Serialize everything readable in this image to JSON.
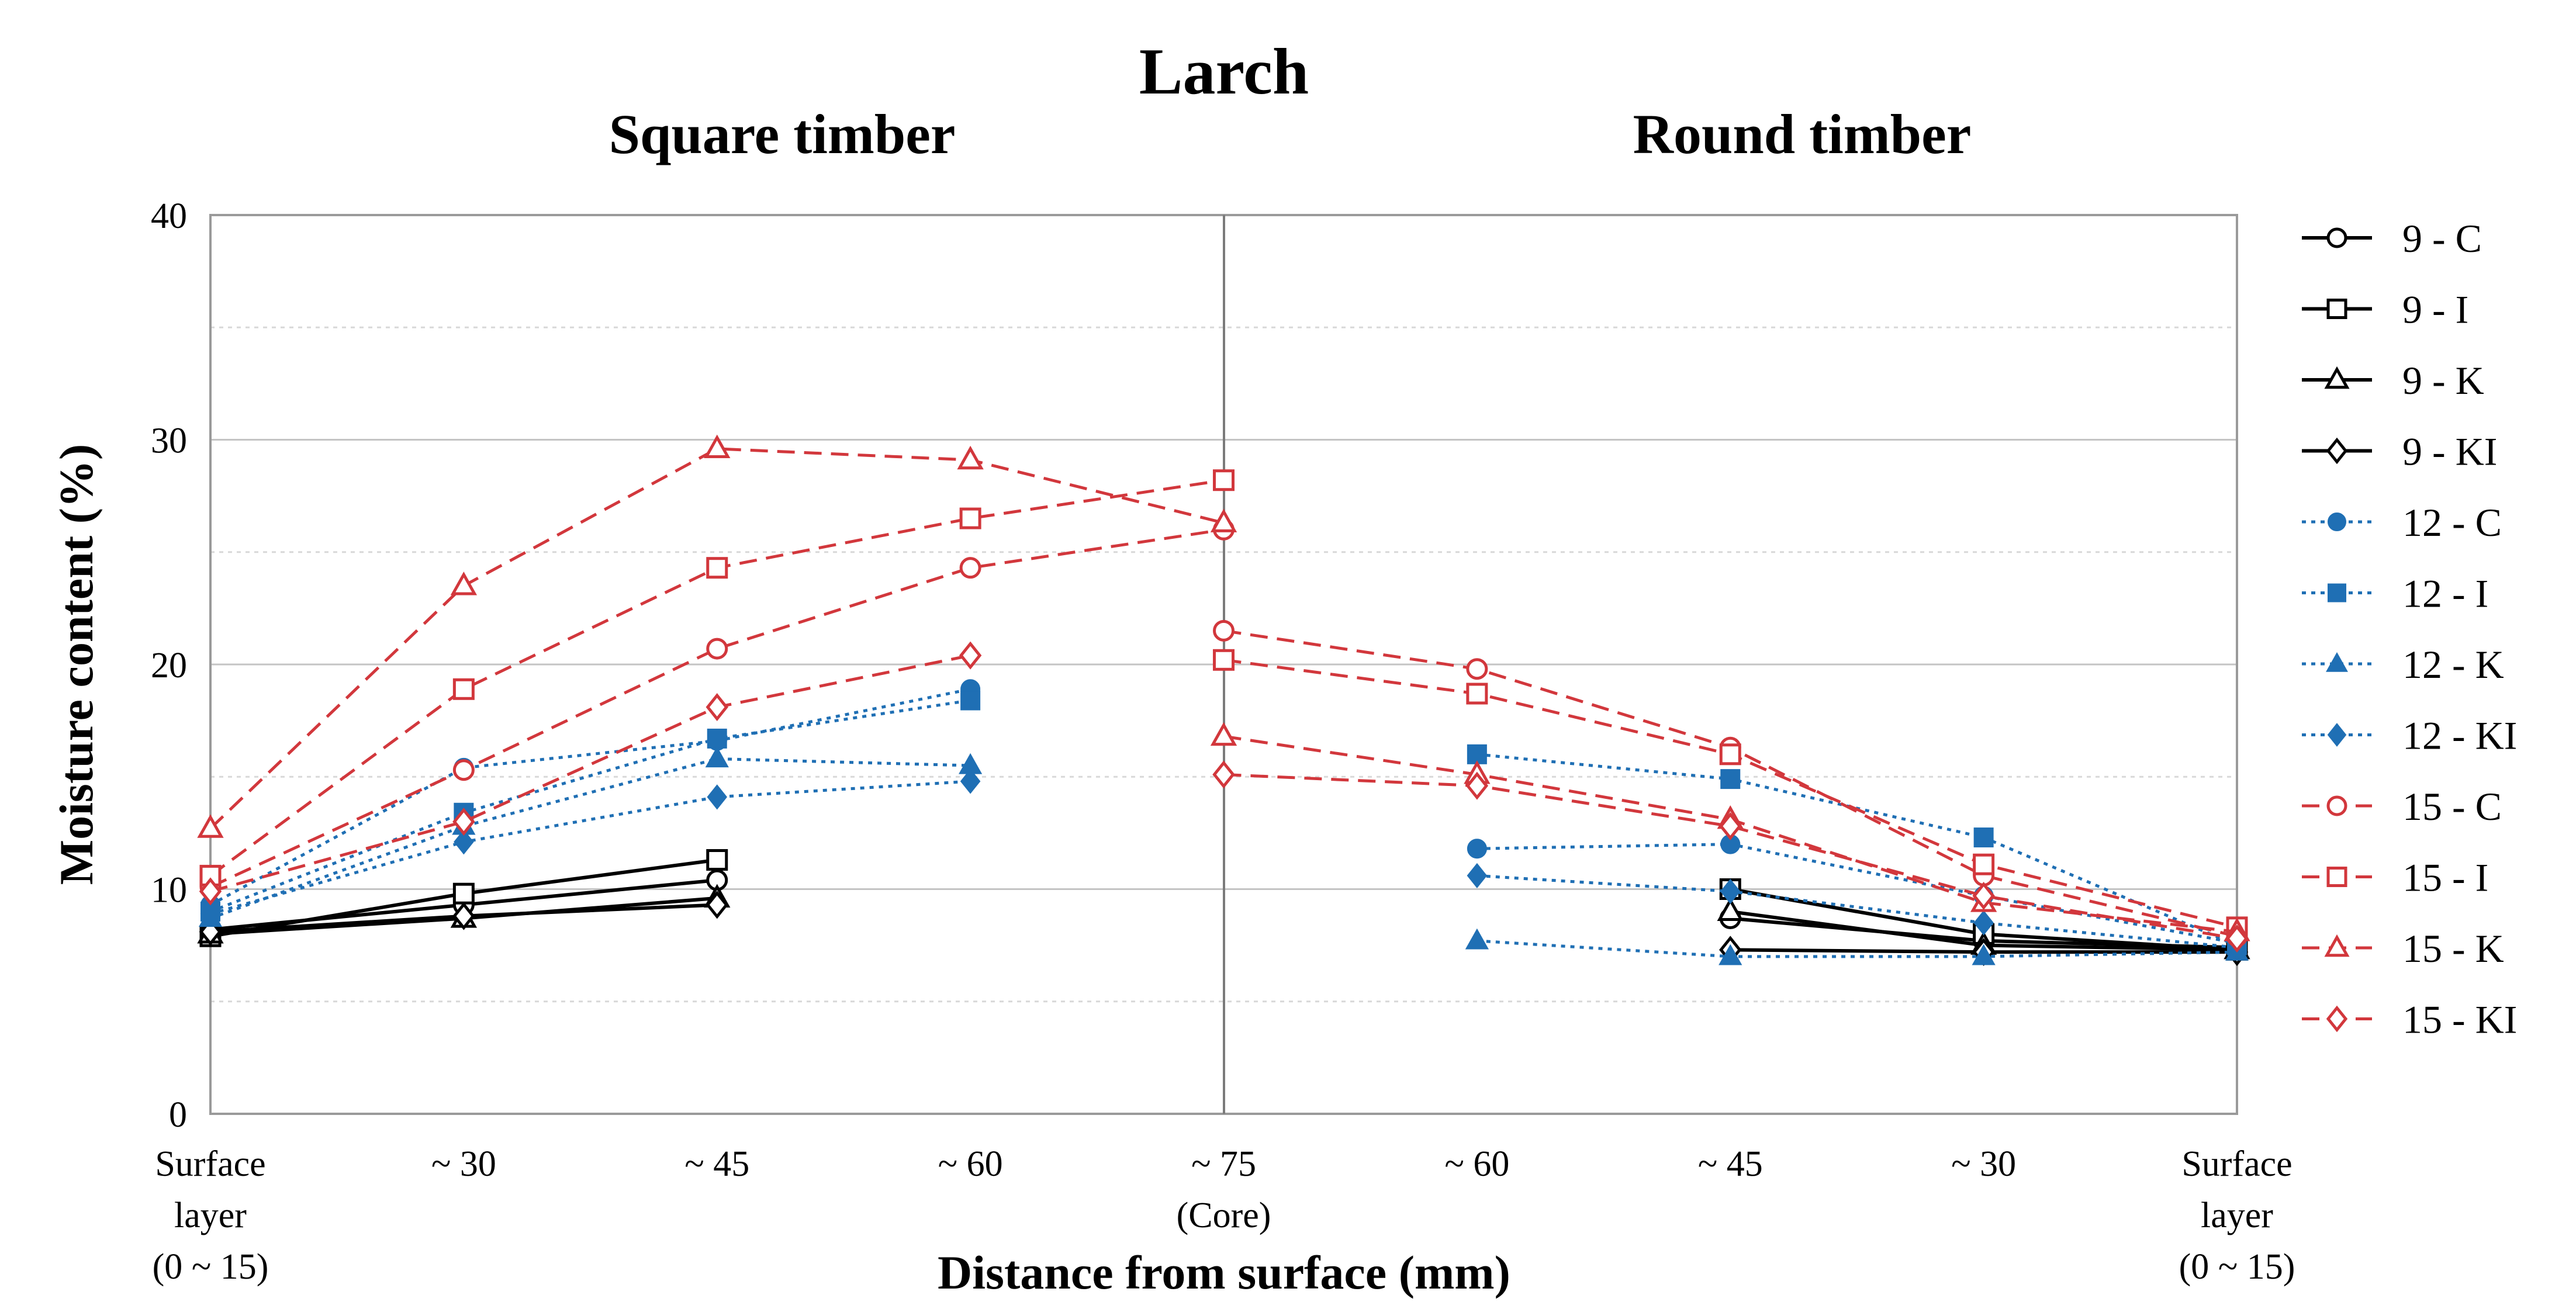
{
  "chart_data": {
    "type": "line",
    "title": "Larch",
    "subtitles": [
      "Square timber",
      "Round timber"
    ],
    "xlabel": "Distance from surface (mm)",
    "ylabel": "Moisture content (%)",
    "ylim": [
      0,
      40
    ],
    "yticks": [
      "0",
      "10",
      "20",
      "30",
      "40"
    ],
    "grid": "horizontal",
    "legend_position": "right",
    "categories": [
      [
        "Surface",
        "layer",
        "(0 ~ 15)"
      ],
      [
        "~ 30"
      ],
      [
        "~ 45"
      ],
      [
        "~ 60"
      ],
      [
        "~ 75",
        "(Core)"
      ],
      [
        "~ 60"
      ],
      [
        "~ 45"
      ],
      [
        "~ 30"
      ],
      [
        "Surface",
        "layer",
        "(0 ~ 15)"
      ]
    ],
    "series": [
      {
        "name": "9 - C",
        "color": "#000000",
        "style": "solid",
        "marker": "circle",
        "filled": false,
        "left": [
          8.2,
          9.3,
          10.4
        ],
        "right": [
          null,
          null,
          8.7,
          7.7,
          7.4
        ]
      },
      {
        "name": "9 - I",
        "color": "#000000",
        "style": "solid",
        "marker": "square",
        "filled": false,
        "left": [
          7.9,
          9.8,
          11.3
        ],
        "right": [
          null,
          null,
          10.0,
          8.0,
          7.3
        ]
      },
      {
        "name": "9 - K",
        "color": "#000000",
        "style": "solid",
        "marker": "triangle",
        "filled": false,
        "left": [
          8.0,
          8.7,
          9.6
        ],
        "right": [
          null,
          null,
          9.0,
          7.5,
          7.3
        ]
      },
      {
        "name": "9 - KI",
        "color": "#000000",
        "style": "solid",
        "marker": "diamond",
        "filled": false,
        "left": [
          8.1,
          8.8,
          9.3
        ],
        "right": [
          null,
          null,
          7.3,
          7.2,
          7.2
        ]
      },
      {
        "name": "12 - C",
        "color": "#1f6fb4",
        "style": "dotted",
        "marker": "circle",
        "filled": true,
        "left": [
          9.3,
          15.4,
          16.6,
          18.9
        ],
        "right": [
          null,
          11.8,
          12.0,
          9.7,
          7.6
        ]
      },
      {
        "name": "12 - I",
        "color": "#1f6fb4",
        "style": "dotted",
        "marker": "square",
        "filled": true,
        "left": [
          9.0,
          13.4,
          16.7,
          18.4
        ],
        "right": [
          null,
          16.0,
          14.9,
          12.3,
          7.5
        ]
      },
      {
        "name": "12 - K",
        "color": "#1f6fb4",
        "style": "dotted",
        "marker": "triangle",
        "filled": true,
        "left": [
          8.7,
          12.8,
          15.8,
          15.5
        ],
        "right": [
          null,
          7.7,
          7.0,
          7.0,
          7.2
        ]
      },
      {
        "name": "12 - KI",
        "color": "#1f6fb4",
        "style": "dotted",
        "marker": "diamond",
        "filled": true,
        "left": [
          8.9,
          12.1,
          14.1,
          14.8
        ],
        "right": [
          null,
          10.6,
          9.9,
          8.5,
          7.4
        ]
      },
      {
        "name": "15 - C",
        "color": "#d2373c",
        "style": "dashed",
        "marker": "circle",
        "filled": false,
        "left": [
          10.1,
          15.3,
          20.7,
          24.3,
          26.0
        ],
        "right": [
          21.5,
          19.8,
          16.3,
          10.6,
          7.9
        ]
      },
      {
        "name": "15 - I",
        "color": "#d2373c",
        "style": "dashed",
        "marker": "square",
        "filled": false,
        "left": [
          10.6,
          18.9,
          24.3,
          26.5,
          28.2
        ],
        "right": [
          20.2,
          18.7,
          16.0,
          11.1,
          8.3
        ]
      },
      {
        "name": "15 - K",
        "color": "#d2373c",
        "style": "dashed",
        "marker": "triangle",
        "filled": false,
        "left": [
          12.7,
          23.5,
          29.6,
          29.1,
          26.3
        ],
        "right": [
          16.8,
          15.1,
          13.1,
          9.4,
          8.1
        ]
      },
      {
        "name": "15 - KI",
        "color": "#d2373c",
        "style": "dashed",
        "marker": "diamond",
        "filled": false,
        "left": [
          9.9,
          13.0,
          18.1,
          20.4
        ],
        "right": [
          15.1,
          14.6,
          12.8,
          9.7,
          7.8
        ]
      }
    ]
  }
}
